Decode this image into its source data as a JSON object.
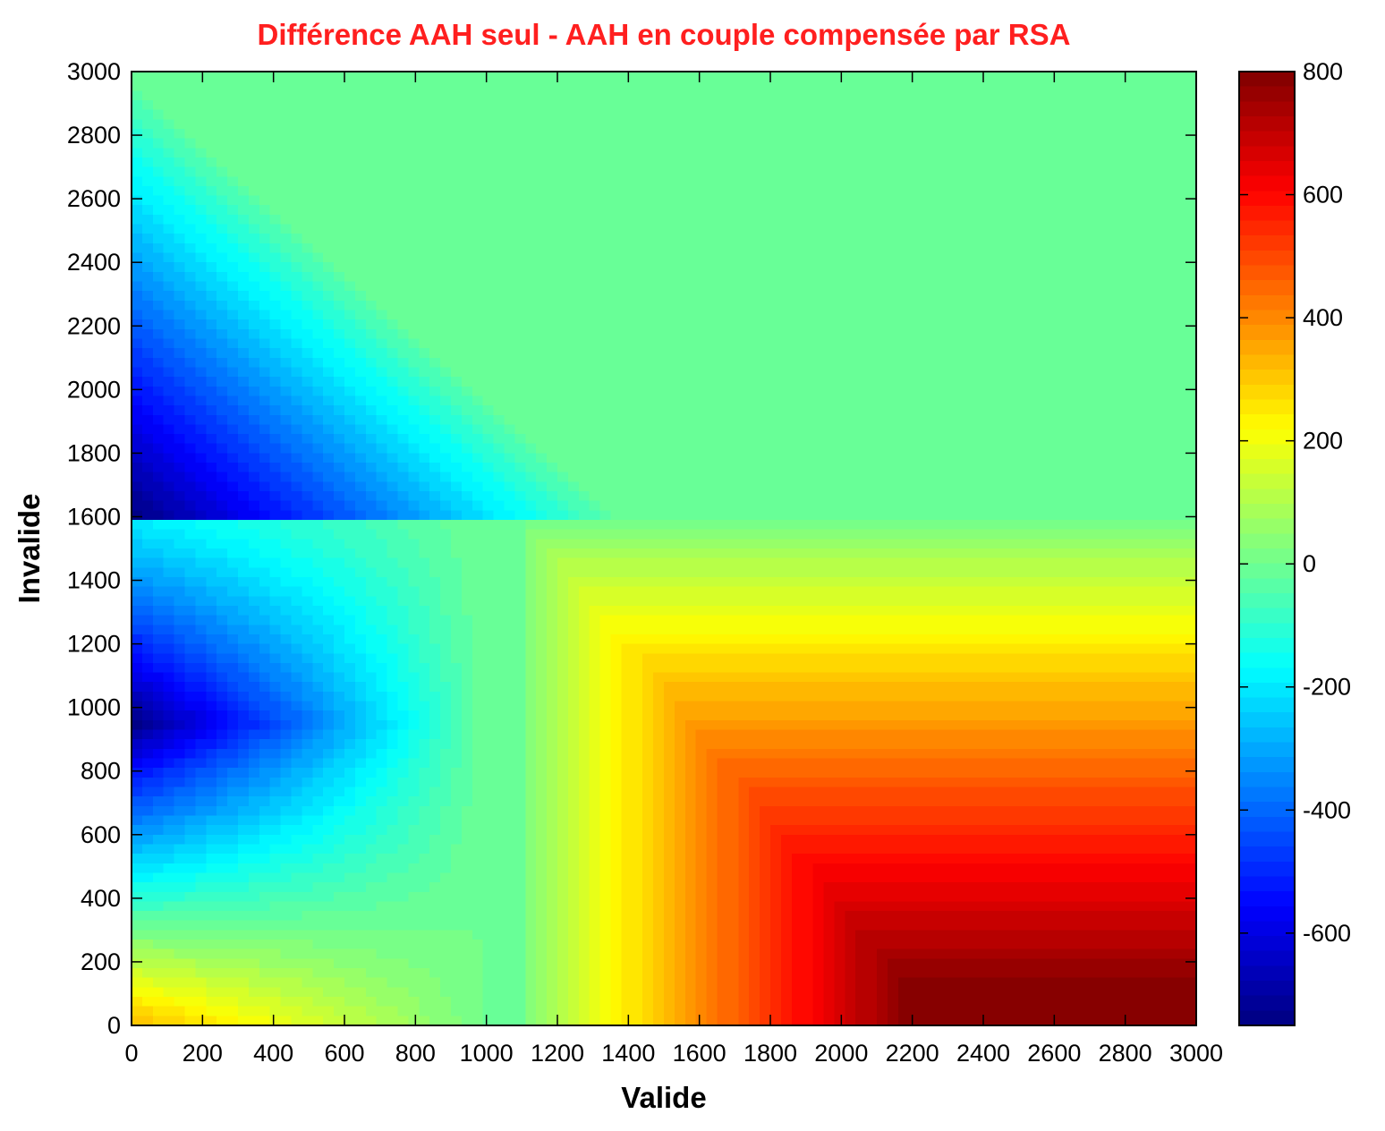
{
  "chart_data": {
    "type": "heatmap",
    "title": "Différence AAH seul - AAH en couple compensée par RSA",
    "title_color": "#ff1f1f",
    "xlabel": "Valide",
    "ylabel": "Invalide",
    "xlim": [
      0,
      3000
    ],
    "ylim": [
      0,
      3000
    ],
    "x_ticks": [
      0,
      200,
      400,
      600,
      800,
      1000,
      1200,
      1400,
      1600,
      1800,
      2000,
      2200,
      2400,
      2600,
      2800,
      3000
    ],
    "y_ticks": [
      0,
      200,
      400,
      600,
      800,
      1000,
      1200,
      1400,
      1600,
      1800,
      2000,
      2200,
      2400,
      2600,
      2800,
      3000
    ],
    "colorbar": {
      "range": [
        -750,
        800
      ],
      "ticks": [
        -600,
        -400,
        -200,
        0,
        200,
        400,
        600,
        800
      ],
      "colormap": "jet",
      "levels": 64
    },
    "grid": false,
    "grid_step": 30,
    "key_values": [
      {
        "x": 0,
        "y": 1650,
        "value": -750
      },
      {
        "x": 0,
        "y": 0,
        "value": 330
      },
      {
        "x": 1000,
        "y": 2000,
        "value": 0
      },
      {
        "x": 1150,
        "y": 500,
        "value": 0
      },
      {
        "x": 1400,
        "y": 300,
        "value": 220
      },
      {
        "x": 2200,
        "y": 100,
        "value": 800
      },
      {
        "x": 3000,
        "y": 0,
        "value": 800
      }
    ]
  }
}
